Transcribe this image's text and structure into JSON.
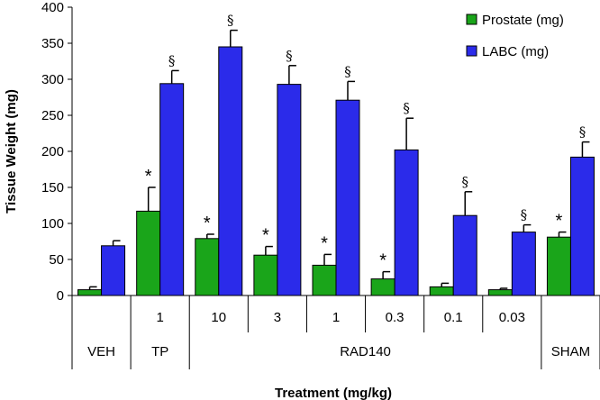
{
  "chart_data": {
    "type": "bar",
    "xlabel": "Treatment (mg/kg)",
    "ylabel": "Tissue Weight (mg)",
    "ylim": [
      0,
      400
    ],
    "yticks": [
      "0",
      "50",
      "100",
      "150",
      "200",
      "250",
      "300",
      "350",
      "400"
    ],
    "grid": false,
    "legend_position": "top-right",
    "doses": [
      "",
      "1",
      "10",
      "3",
      "1",
      "0.3",
      "0.1",
      "0.03",
      ""
    ],
    "groups": [
      {
        "label": "VEH",
        "span": 1
      },
      {
        "label": "TP",
        "span": 1
      },
      {
        "label": "RAD140",
        "span": 6
      },
      {
        "label": "SHAM",
        "span": 1
      }
    ],
    "series": [
      {
        "name": "Prostate (mg)",
        "color": "#1aa51a",
        "values": [
          8,
          117,
          79,
          56,
          42,
          23,
          12,
          8,
          81
        ],
        "errors": [
          4,
          33,
          6,
          12,
          15,
          10,
          5,
          2,
          7
        ],
        "markers": [
          "",
          "*",
          "*",
          "*",
          "*",
          "*",
          "",
          "",
          "*"
        ]
      },
      {
        "name": "LABC (mg)",
        "color": "#2b2bea",
        "values": [
          69,
          294,
          345,
          293,
          271,
          202,
          111,
          88,
          192
        ],
        "errors": [
          7,
          18,
          23,
          26,
          26,
          44,
          33,
          10,
          21
        ],
        "markers": [
          "",
          "§",
          "§",
          "§",
          "§",
          "§",
          "§",
          "§",
          "§"
        ]
      }
    ]
  }
}
